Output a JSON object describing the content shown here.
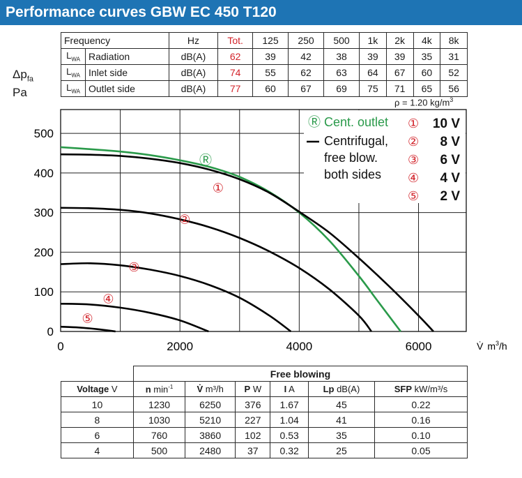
{
  "title": "Performance curves GBW EC 450 T120",
  "sound_table": {
    "header": [
      "Frequency",
      "Hz",
      "Tot.",
      "125",
      "250",
      "500",
      "1k",
      "2k",
      "4k",
      "8k"
    ],
    "rows": [
      {
        "prefix": "L",
        "sub": "WA",
        "label": "Radiation",
        "unit": "dB(A)",
        "tot": "62",
        "values": [
          "39",
          "42",
          "38",
          "39",
          "39",
          "35",
          "31"
        ]
      },
      {
        "prefix": "L",
        "sub": "WA",
        "label": "Inlet side",
        "unit": "dB(A)",
        "tot": "74",
        "values": [
          "55",
          "62",
          "63",
          "64",
          "67",
          "60",
          "52"
        ]
      },
      {
        "prefix": "L",
        "sub": "WA",
        "label": "Outlet side",
        "unit": "dB(A)",
        "tot": "77",
        "values": [
          "60",
          "67",
          "69",
          "75",
          "71",
          "65",
          "56"
        ]
      }
    ]
  },
  "y_axis_label": {
    "main": "Δp",
    "sub": "fa",
    "unit": "Pa"
  },
  "x_axis_label": {
    "symbol": "V̇",
    "unit": "m",
    "unit_sup": "3",
    "unit_tail": "/h"
  },
  "density_note": {
    "text": "ρ = 1.20 kg/m",
    "sup": "3"
  },
  "colors": {
    "title_bg": "#1e74b4",
    "green": "#2a9a4a",
    "red": "#d2232a",
    "black": "#000000"
  },
  "chart_data": {
    "type": "line",
    "xlim": [
      0,
      6800
    ],
    "ylim": [
      0,
      560
    ],
    "x_ticks": [
      0,
      2000,
      4000,
      6000
    ],
    "y_ticks": [
      0,
      100,
      200,
      300,
      400,
      500
    ],
    "grid": true,
    "legend": {
      "green_symbol": "Ⓡ",
      "green_text": "Cent. outlet",
      "black_text": [
        "Centrifugal,",
        "free blow.",
        "both sides"
      ],
      "voltages": [
        {
          "symbol": "①",
          "label": "10 V"
        },
        {
          "symbol": "②",
          "label": "8 V"
        },
        {
          "symbol": "③",
          "label": "6 V"
        },
        {
          "symbol": "④",
          "label": "4 V"
        },
        {
          "symbol": "⑤",
          "label": "2 V"
        }
      ]
    },
    "series": [
      {
        "marker": "Ⓡ",
        "color": "#2a9a4a",
        "x": [
          0,
          500,
          1000,
          1500,
          2000,
          2500,
          3000,
          3500,
          4000,
          4500,
          5000,
          5300,
          5700
        ],
        "y": [
          465,
          460,
          454,
          445,
          432,
          415,
          390,
          352,
          300,
          230,
          140,
          80,
          0
        ],
        "label_at": [
          2430,
          432
        ]
      },
      {
        "marker": "①",
        "color": "#000000",
        "x": [
          0,
          500,
          1000,
          1500,
          2000,
          2500,
          3000,
          3500,
          4000,
          4500,
          5000,
          5500,
          6000,
          6250
        ],
        "y": [
          447,
          446,
          443,
          436,
          425,
          408,
          384,
          350,
          302,
          250,
          185,
          115,
          40,
          0
        ],
        "label_at": [
          2640,
          362
        ]
      },
      {
        "marker": "②",
        "color": "#000000",
        "x": [
          0,
          500,
          1000,
          1500,
          2000,
          2500,
          3000,
          3500,
          4000,
          4500,
          5000,
          5210
        ],
        "y": [
          312,
          311,
          307,
          298,
          283,
          263,
          236,
          202,
          160,
          107,
          40,
          0
        ],
        "label_at": [
          2080,
          283
        ]
      },
      {
        "marker": "③",
        "color": "#000000",
        "x": [
          0,
          500,
          1000,
          1500,
          2000,
          2500,
          3000,
          3500,
          3860
        ],
        "y": [
          170,
          172,
          167,
          156,
          140,
          117,
          85,
          40,
          0
        ],
        "label_at": [
          1230,
          162
        ]
      },
      {
        "marker": "④",
        "color": "#000000",
        "x": [
          0,
          500,
          1000,
          1500,
          2000,
          2480
        ],
        "y": [
          70,
          68,
          60,
          47,
          28,
          0
        ],
        "label_at": [
          800,
          82
        ]
      },
      {
        "marker": "⑤",
        "color": "#000000",
        "x": [
          0,
          300,
          600,
          920
        ],
        "y": [
          12,
          10,
          6,
          0
        ],
        "label_at": [
          450,
          33
        ]
      }
    ]
  },
  "perf_table": {
    "group_header": "Free blowing",
    "columns": [
      {
        "bold": "Voltage",
        "unit": " V"
      },
      {
        "bold": "n",
        "unit": " min",
        "sup": "-1"
      },
      {
        "bold": "V̇",
        "unit": " m³/h"
      },
      {
        "bold": "P",
        "unit": " W"
      },
      {
        "bold": "I",
        "unit": " A"
      },
      {
        "bold": "Lp",
        "unit": " dB(A)"
      },
      {
        "bold": "SFP",
        "unit": " kW/m³/s"
      }
    ],
    "rows": [
      [
        "10",
        "1230",
        "6250",
        "376",
        "1.67",
        "45",
        "0.22"
      ],
      [
        "8",
        "1030",
        "5210",
        "227",
        "1.04",
        "41",
        "0.16"
      ],
      [
        "6",
        "760",
        "3860",
        "102",
        "0.53",
        "35",
        "0.10"
      ],
      [
        "4",
        "500",
        "2480",
        "37",
        "0.32",
        "25",
        "0.05"
      ]
    ]
  }
}
